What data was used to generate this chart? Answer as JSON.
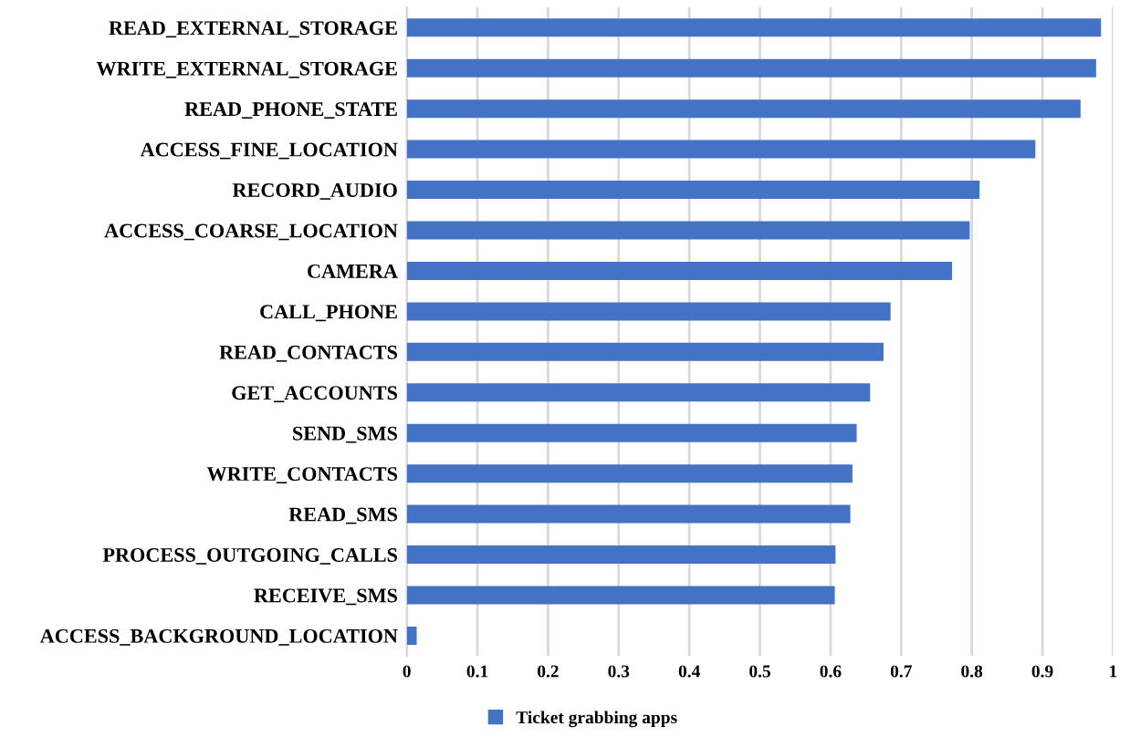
{
  "chart_data": {
    "type": "bar",
    "orientation": "horizontal",
    "categories": [
      "READ_EXTERNAL_STORAGE",
      "WRITE_EXTERNAL_STORAGE",
      "READ_PHONE_STATE",
      "ACCESS_FINE_LOCATION",
      "RECORD_AUDIO",
      "ACCESS_COARSE_LOCATION",
      "CAMERA",
      "CALL_PHONE",
      "READ_CONTACTS",
      "GET_ACCOUNTS",
      "SEND_SMS",
      "WRITE_CONTACTS",
      "READ_SMS",
      "PROCESS_OUTGOING_CALLS",
      "RECEIVE_SMS",
      "ACCESS_BACKGROUND_LOCATION"
    ],
    "series": [
      {
        "name": "Ticket grabbing apps",
        "color": "#4472c4",
        "values": [
          0.983,
          0.976,
          0.954,
          0.89,
          0.811,
          0.797,
          0.772,
          0.685,
          0.675,
          0.656,
          0.637,
          0.631,
          0.628,
          0.607,
          0.606,
          0.014
        ]
      }
    ],
    "xlim": [
      0,
      1
    ],
    "xticks": [
      0,
      0.1,
      0.2,
      0.3,
      0.4,
      0.5,
      0.6,
      0.7,
      0.8,
      0.9,
      1
    ],
    "grid": "x",
    "legend": "bottom"
  }
}
